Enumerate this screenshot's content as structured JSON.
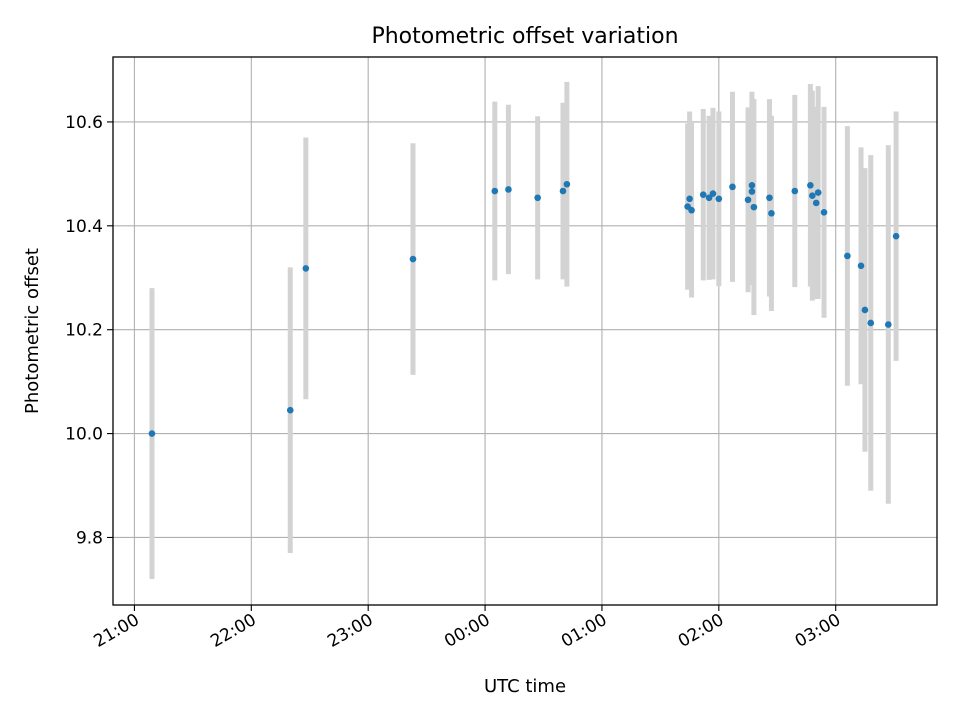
{
  "chart_data": {
    "type": "scatter",
    "title": "Photometric offset variation",
    "xlabel": "UTC time",
    "ylabel": "Photometric offset",
    "xlim": [
      "20:49",
      "03:52"
    ],
    "ylim": [
      9.67,
      10.725
    ],
    "x_ticks": [
      "21:00",
      "22:00",
      "23:00",
      "00:00",
      "01:00",
      "02:00",
      "03:00"
    ],
    "y_ticks": [
      "9.8",
      "10.0",
      "10.2",
      "10.4",
      "10.6"
    ],
    "grid": true,
    "colors": {
      "point": "#1f77b4",
      "errorbar": "#d3d3d3",
      "grid": "#b0b0b0"
    },
    "points": [
      {
        "x": "21:09",
        "y": 10.0,
        "yerr": 0.28
      },
      {
        "x": "22:20",
        "y": 10.045,
        "yerr": 0.275
      },
      {
        "x": "22:28",
        "y": 10.318,
        "yerr": 0.252
      },
      {
        "x": "23:23",
        "y": 10.336,
        "yerr": 0.223
      },
      {
        "x": "00:05",
        "y": 10.467,
        "yerr": 0.172
      },
      {
        "x": "00:12",
        "y": 10.47,
        "yerr": 0.163
      },
      {
        "x": "00:27",
        "y": 10.454,
        "yerr": 0.157
      },
      {
        "x": "00:40",
        "y": 10.467,
        "yerr": 0.17
      },
      {
        "x": "00:42",
        "y": 10.48,
        "yerr": 0.197
      },
      {
        "x": "01:44",
        "y": 10.437,
        "yerr": 0.16
      },
      {
        "x": "01:45",
        "y": 10.452,
        "yerr": 0.168
      },
      {
        "x": "01:46",
        "y": 10.43,
        "yerr": 0.168
      },
      {
        "x": "01:52",
        "y": 10.46,
        "yerr": 0.165
      },
      {
        "x": "01:55",
        "y": 10.454,
        "yerr": 0.158
      },
      {
        "x": "01:57",
        "y": 10.462,
        "yerr": 0.165
      },
      {
        "x": "02:00",
        "y": 10.452,
        "yerr": 0.168
      },
      {
        "x": "02:07",
        "y": 10.475,
        "yerr": 0.183
      },
      {
        "x": "02:15",
        "y": 10.45,
        "yerr": 0.178
      },
      {
        "x": "02:17",
        "y": 10.478,
        "yerr": 0.18
      },
      {
        "x": "02:17",
        "y": 10.466,
        "yerr": 0.18
      },
      {
        "x": "02:18",
        "y": 10.436,
        "yerr": 0.208
      },
      {
        "x": "02:26",
        "y": 10.454,
        "yerr": 0.19
      },
      {
        "x": "02:27",
        "y": 10.424,
        "yerr": 0.188
      },
      {
        "x": "02:39",
        "y": 10.467,
        "yerr": 0.185
      },
      {
        "x": "02:47",
        "y": 10.478,
        "yerr": 0.195
      },
      {
        "x": "02:48",
        "y": 10.458,
        "yerr": 0.202
      },
      {
        "x": "02:50",
        "y": 10.444,
        "yerr": 0.185
      },
      {
        "x": "02:51",
        "y": 10.464,
        "yerr": 0.205
      },
      {
        "x": "02:54",
        "y": 10.426,
        "yerr": 0.203
      },
      {
        "x": "03:06",
        "y": 10.342,
        "yerr": 0.25
      },
      {
        "x": "03:13",
        "y": 10.323,
        "yerr": 0.228
      },
      {
        "x": "03:15",
        "y": 10.238,
        "yerr": 0.273
      },
      {
        "x": "03:18",
        "y": 10.213,
        "yerr": 0.323
      },
      {
        "x": "03:27",
        "y": 10.21,
        "yerr": 0.345
      },
      {
        "x": "03:31",
        "y": 10.38,
        "yerr": 0.24
      }
    ]
  }
}
